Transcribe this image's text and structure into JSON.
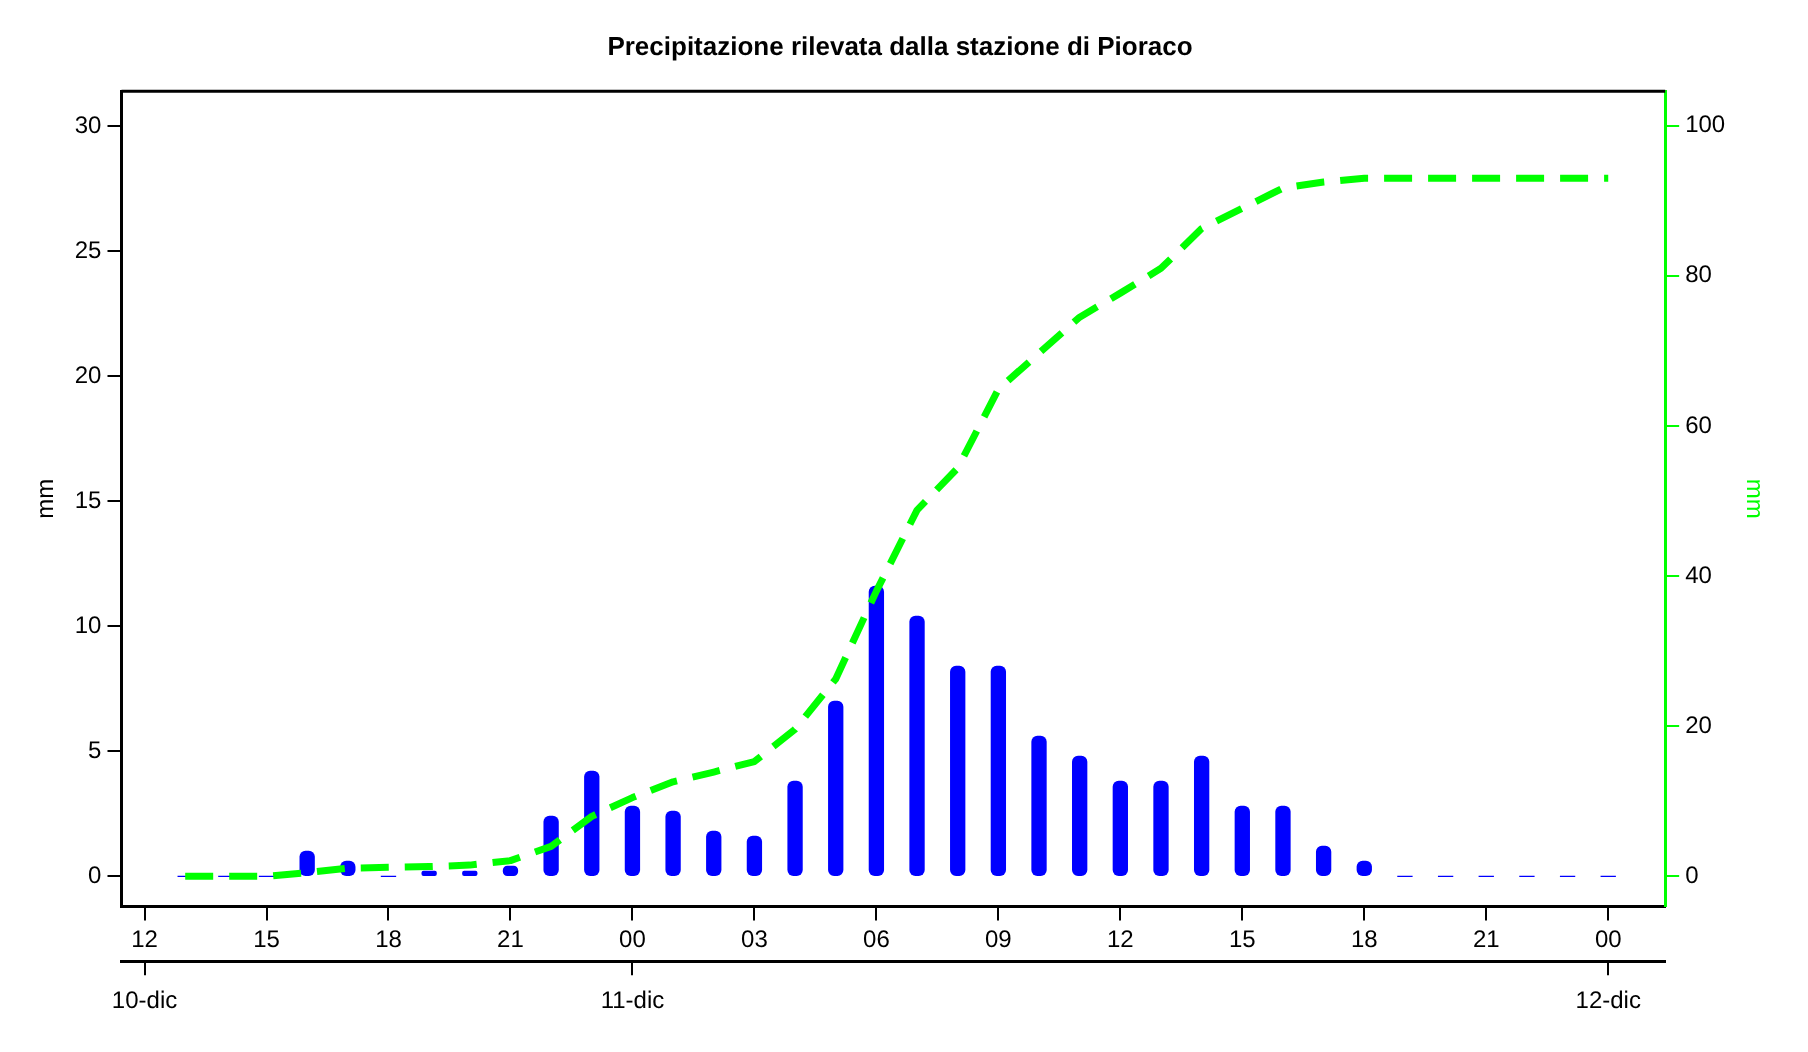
{
  "chart_data": {
    "type": "bar",
    "title": "Precipitazione rilevata dalla stazione di Pioraco",
    "ylabel": "mm",
    "y2label": "mm",
    "x": [
      "--12-10T13:00",
      "--12-10T14:00",
      "--12-10T15:00",
      "--12-10T16:00",
      "--12-10T17:00",
      "--12-10T18:00",
      "--12-10T19:00",
      "--12-10T20:00",
      "--12-10T21:00",
      "--12-10T22:00",
      "--12-10T23:00",
      "--12-11T00:00",
      "--12-11T01:00",
      "--12-11T02:00",
      "--12-11T03:00",
      "--12-11T04:00",
      "--12-11T05:00",
      "--12-11T06:00",
      "--12-11T07:00",
      "--12-11T08:00",
      "--12-11T09:00",
      "--12-11T10:00",
      "--12-11T11:00",
      "--12-11T12:00",
      "--12-11T13:00",
      "--12-11T14:00",
      "--12-11T15:00",
      "--12-11T16:00",
      "--12-11T17:00",
      "--12-11T18:00",
      "--12-11T19:00",
      "--12-11T20:00",
      "--12-11T21:00",
      "--12-11T22:00",
      "--12-11T23:00",
      "--12-12T00:00"
    ],
    "series": [
      {
        "color": "#0000ff",
        "values": [
          0,
          0,
          0,
          1.0,
          0.6,
          0,
          0.2,
          0.2,
          0.4,
          2.4,
          4.2,
          2.8,
          2.6,
          1.8,
          1.6,
          3.8,
          7.0,
          11.6,
          10.4,
          8.4,
          8.4,
          5.6,
          4.8,
          3.8,
          3.8,
          4.8,
          2.8,
          2.8,
          1.2,
          0.6,
          0,
          0,
          0,
          0,
          0,
          0
        ]
      },
      {
        "type": "line",
        "color": "#00ff00",
        "axis": "y2",
        "line_style": "dashed",
        "marker": "none",
        "values": [
          0,
          0,
          0,
          0.5,
          1.1,
          1.2,
          1.3,
          1.5,
          2.1,
          4.0,
          8.0,
          10.5,
          12.6,
          13.9,
          15.3,
          19.6,
          26.3,
          38,
          48.8,
          54.4,
          64.9,
          69.7,
          74.5,
          77.7,
          81,
          86.3,
          89,
          91.7,
          92.5,
          93,
          93,
          93,
          93,
          93,
          93,
          93
        ]
      }
    ],
    "xlim": [
      "--12-10T11:26",
      "--12-12T01:24"
    ],
    "xticks": [
      {
        "value": "--12-10T12:00",
        "label": "12"
      },
      {
        "value": "--12-10T15:00",
        "label": "15"
      },
      {
        "value": "--12-10T18:00",
        "label": "18"
      },
      {
        "value": "--12-10T21:00",
        "label": "21"
      },
      {
        "value": "--12-11T00:00",
        "label": "00"
      },
      {
        "value": "--12-11T03:00",
        "label": "03"
      },
      {
        "value": "--12-11T06:00",
        "label": "06"
      },
      {
        "value": "--12-11T09:00",
        "label": "09"
      },
      {
        "value": "--12-11T12:00",
        "label": "12"
      },
      {
        "value": "--12-11T15:00",
        "label": "15"
      },
      {
        "value": "--12-11T18:00",
        "label": "18"
      },
      {
        "value": "--12-11T21:00",
        "label": "21"
      },
      {
        "value": "--12-12T00:00",
        "label": "00"
      }
    ],
    "x2lim": [
      "--12-10T11:26",
      "--12-12T01:24"
    ],
    "x2ticks": [
      {
        "value": "--12-10T12:00",
        "label": "10-dic"
      },
      {
        "value": "--12-11T00:00",
        "label": "11-dic"
      },
      {
        "value": "--12-12T00:00",
        "label": "12-dic"
      }
    ],
    "ylim": [
      -1.2,
      31.4
    ],
    "yticks": [
      0,
      5,
      10,
      15,
      20,
      25,
      30
    ],
    "y2lim": [
      -4,
      104.6
    ],
    "y2ticks": [
      0,
      20,
      40,
      60,
      80,
      100
    ],
    "grid": false,
    "legend": false
  }
}
